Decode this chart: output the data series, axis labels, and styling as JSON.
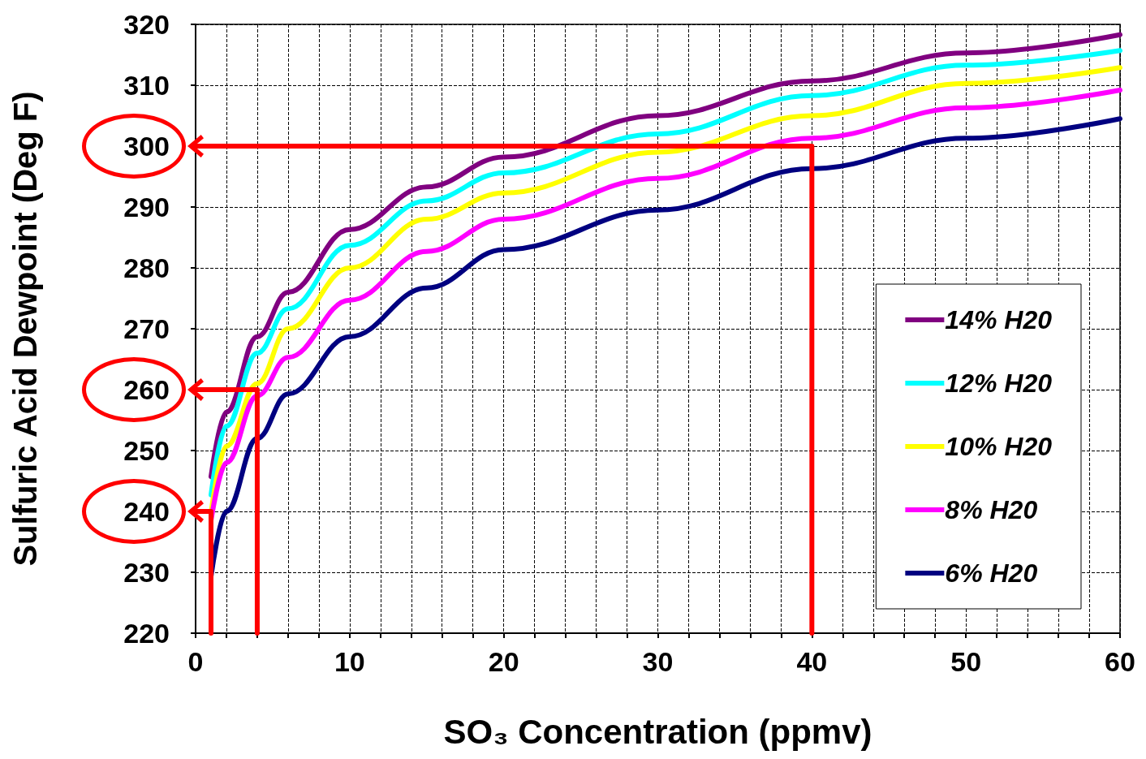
{
  "chart_data": {
    "type": "line",
    "xlabel": "SO₃ Concentration (ppmv)",
    "ylabel": "Sulfuric Acid Dewpoint (Deg F)",
    "xlim": [
      0,
      60
    ],
    "xticks": [
      0,
      {
        "value": 2,
        "label": null
      },
      {
        "value": 4,
        "label": null
      },
      {
        "value": 6,
        "label": null
      },
      {
        "value": 8,
        "label": null
      },
      10,
      {
        "value": 12,
        "label": null
      },
      {
        "value": 14,
        "label": null
      },
      {
        "value": 16,
        "label": null
      },
      {
        "value": 18,
        "label": null
      },
      20,
      {
        "value": 22,
        "label": null
      },
      {
        "value": 24,
        "label": null
      },
      {
        "value": 26,
        "label": null
      },
      {
        "value": 28,
        "label": null
      },
      30,
      {
        "value": 32,
        "label": null
      },
      {
        "value": 34,
        "label": null
      },
      {
        "value": 36,
        "label": null
      },
      {
        "value": 38,
        "label": null
      },
      40,
      {
        "value": 42,
        "label": null
      },
      {
        "value": 44,
        "label": null
      },
      {
        "value": 46,
        "label": null
      },
      {
        "value": 48,
        "label": null
      },
      50,
      {
        "value": 52,
        "label": null
      },
      {
        "value": 54,
        "label": null
      },
      {
        "value": 56,
        "label": null
      },
      {
        "value": 58,
        "label": null
      },
      60
    ],
    "ylim": [
      220,
      320
    ],
    "yticks": [
      220,
      230,
      240,
      250,
      260,
      270,
      280,
      290,
      300,
      310,
      320
    ],
    "grid": true,
    "legend": "bottom right",
    "marker": "none",
    "line_style": "solid",
    "x": [
      1,
      2,
      4,
      6,
      10,
      15,
      20,
      30,
      40,
      50,
      60
    ],
    "series": [
      {
        "name": "14% H20",
        "color": "#800080",
        "values": [
          245.7,
          256.3,
          268.7,
          276,
          286.3,
          293.3,
          298.2,
          305,
          310.7,
          315.3,
          318.3
        ]
      },
      {
        "name": "12% H20",
        "color": "#00ffff",
        "values": [
          242.7,
          254,
          266,
          273.3,
          283.7,
          291,
          295.6,
          302,
          308.3,
          313.3,
          315.7
        ]
      },
      {
        "name": "10% H20",
        "color": "#ffff00",
        "values": [
          239.7,
          250.7,
          261,
          270,
          280,
          288,
          292.3,
          299,
          305,
          310.3,
          312.9
        ]
      },
      {
        "name": "8% H20",
        "color": "#ff00ff",
        "values": [
          238.5,
          248,
          259,
          265.3,
          274.7,
          282.7,
          288,
          294.7,
          301.3,
          306.3,
          309.2
        ]
      },
      {
        "name": "6% H20",
        "color": "#000080",
        "values": [
          229.3,
          240,
          252,
          259.3,
          268.7,
          276.7,
          283,
          289.5,
          296.3,
          301.3,
          304.5
        ]
      },
      {
        "type": "line",
        "color": "#ff0000",
        "x": [
          1,
          1,
          0
        ],
        "values": [
          220,
          240,
          240
        ]
      },
      {
        "type": "line",
        "color": "#ff0000",
        "x": [
          4,
          4,
          0
        ],
        "values": [
          220,
          260,
          260
        ]
      },
      {
        "type": "line",
        "color": "#ff0000",
        "x": [
          40,
          40,
          0
        ],
        "values": [
          220,
          300,
          300
        ]
      }
    ]
  }
}
